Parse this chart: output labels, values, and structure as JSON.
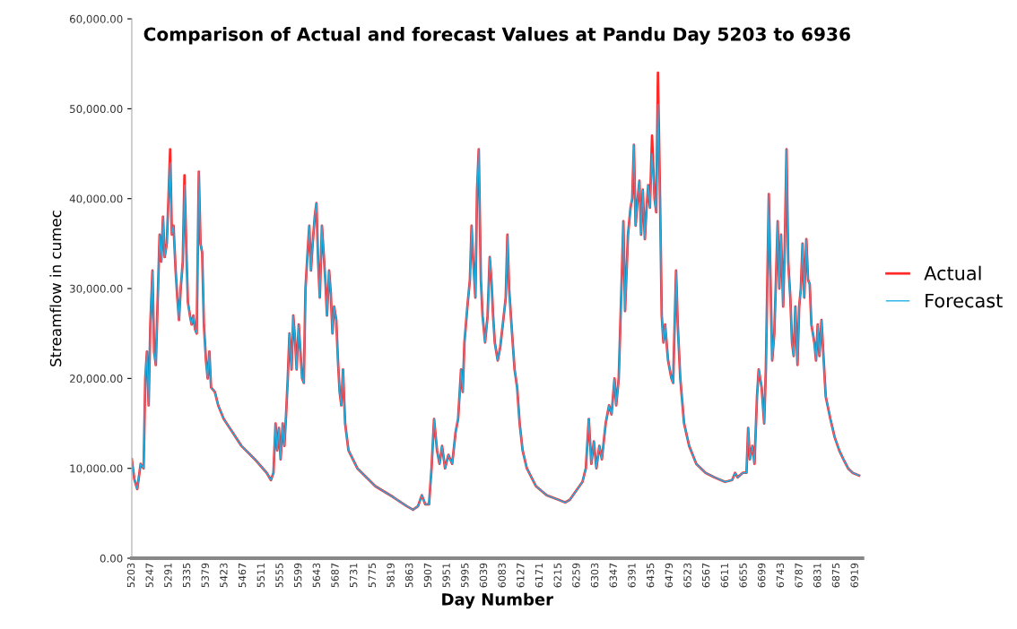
{
  "chart_data": {
    "type": "line",
    "title": "Comparison of Actual and forecast Values at Pandu Day 5203 to 6936",
    "xlabel": "Day Number",
    "ylabel": "Streamflow in cumec",
    "x": [
      5203,
      5209,
      5216,
      5224,
      5231,
      5235,
      5239,
      5243,
      5247,
      5252,
      5256,
      5260,
      5264,
      5269,
      5273,
      5277,
      5281,
      5286,
      5290,
      5294,
      5298,
      5302,
      5307,
      5311,
      5315,
      5319,
      5324,
      5328,
      5332,
      5336,
      5341,
      5345,
      5349,
      5353,
      5357,
      5362,
      5366,
      5370,
      5374,
      5379,
      5383,
      5387,
      5391,
      5400,
      5408,
      5421,
      5442,
      5463,
      5495,
      5523,
      5533,
      5539,
      5544,
      5548,
      5552,
      5556,
      5561,
      5565,
      5569,
      5573,
      5577,
      5582,
      5586,
      5590,
      5594,
      5599,
      5603,
      5607,
      5611,
      5615,
      5620,
      5624,
      5628,
      5632,
      5637,
      5641,
      5645,
      5649,
      5654,
      5658,
      5662,
      5666,
      5671,
      5675,
      5679,
      5683,
      5688,
      5692,
      5696,
      5700,
      5704,
      5709,
      5717,
      5738,
      5781,
      5823,
      5855,
      5870,
      5882,
      5891,
      5899,
      5908,
      5914,
      5920,
      5927,
      5933,
      5939,
      5946,
      5954,
      5963,
      5971,
      5977,
      5984,
      5988,
      5992,
      5999,
      6005,
      6009,
      6013,
      6018,
      6022,
      6026,
      6031,
      6035,
      6041,
      6047,
      6052,
      6056,
      6060,
      6064,
      6071,
      6077,
      6083,
      6090,
      6094,
      6098,
      6105,
      6111,
      6117,
      6123,
      6130,
      6140,
      6162,
      6187,
      6215,
      6231,
      6242,
      6257,
      6272,
      6280,
      6287,
      6293,
      6299,
      6305,
      6312,
      6318,
      6327,
      6335,
      6341,
      6348,
      6352,
      6358,
      6365,
      6369,
      6373,
      6380,
      6386,
      6390,
      6394,
      6398,
      6403,
      6407,
      6411,
      6415,
      6420,
      6424,
      6428,
      6432,
      6437,
      6443,
      6447,
      6451,
      6456,
      6460,
      6464,
      6468,
      6475,
      6483,
      6487,
      6494,
      6498,
      6504,
      6513,
      6525,
      6542,
      6564,
      6585,
      6610,
      6627,
      6634,
      6640,
      6652,
      6661,
      6665,
      6669,
      6675,
      6680,
      6686,
      6690,
      6697,
      6703,
      6707,
      6714,
      6718,
      6722,
      6727,
      6731,
      6735,
      6739,
      6743,
      6748,
      6752,
      6756,
      6760,
      6765,
      6769,
      6773,
      6777,
      6782,
      6786,
      6790,
      6794,
      6798,
      6803,
      6807,
      6811,
      6815,
      6822,
      6826,
      6830,
      6834,
      6839,
      6843,
      6849,
      6860,
      6870,
      6881,
      6891,
      6902,
      6913,
      6928
    ],
    "series": [
      {
        "name": "Actual",
        "color": "#ff2a2a",
        "values": [
          11000,
          8800,
          7700,
          10500,
          10000,
          20000,
          23000,
          17000,
          26000,
          32000,
          23000,
          21500,
          28000,
          36000,
          33000,
          38000,
          33500,
          35000,
          40000,
          45500,
          36000,
          37000,
          32000,
          29000,
          26500,
          30000,
          33000,
          42600,
          35000,
          28500,
          27000,
          26000,
          27000,
          25500,
          25000,
          43000,
          35000,
          34000,
          26000,
          22000,
          20000,
          23000,
          19000,
          18500,
          17000,
          15500,
          14000,
          12500,
          11000,
          9500,
          8700,
          9500,
          15000,
          12000,
          14500,
          11000,
          15000,
          12500,
          16000,
          20000,
          25000,
          21000,
          27000,
          24500,
          21000,
          26000,
          23000,
          20000,
          19500,
          30000,
          34000,
          37000,
          32000,
          35000,
          38000,
          39500,
          33000,
          29000,
          37000,
          34000,
          31000,
          27000,
          32000,
          29500,
          25000,
          28000,
          26500,
          22000,
          18500,
          17000,
          21000,
          15000,
          12000,
          10000,
          8000,
          6800,
          5800,
          5400,
          5800,
          7000,
          6000,
          6000,
          10000,
          15500,
          12000,
          10500,
          12500,
          10000,
          11500,
          10500,
          14000,
          15500,
          21000,
          18500,
          24000,
          28000,
          31000,
          37000,
          33000,
          29000,
          41000,
          45500,
          31000,
          27000,
          24000,
          27000,
          33500,
          31000,
          27000,
          24000,
          22000,
          23500,
          26000,
          29000,
          36000,
          30000,
          25000,
          21000,
          19000,
          15000,
          12000,
          10000,
          8000,
          7000,
          6500,
          6200,
          6500,
          7500,
          8500,
          10000,
          15500,
          10500,
          13000,
          10000,
          12500,
          11000,
          15000,
          17000,
          16000,
          20000,
          17000,
          20000,
          31000,
          37500,
          27500,
          36000,
          39000,
          40000,
          46000,
          37000,
          40000,
          42000,
          36000,
          41000,
          35500,
          39000,
          41500,
          39000,
          47000,
          40000,
          38500,
          54000,
          40000,
          27000,
          24000,
          26000,
          22000,
          20000,
          19500,
          32000,
          26000,
          20000,
          15000,
          12500,
          10500,
          9500,
          9000,
          8500,
          8700,
          9500,
          9000,
          9500,
          9500,
          14500,
          11000,
          12500,
          10500,
          18000,
          21000,
          19000,
          15000,
          21000,
          40500,
          31000,
          22000,
          25000,
          31000,
          37500,
          30000,
          36000,
          28000,
          35000,
          45500,
          33000,
          29000,
          24000,
          22500,
          28000,
          21500,
          28000,
          30000,
          35000,
          29000,
          35500,
          31000,
          30500,
          26000,
          24000,
          22000,
          26000,
          22500,
          26500,
          23000,
          18000,
          15500,
          13500,
          12000,
          11000,
          10000,
          9500,
          9200
        ]
      },
      {
        "name": "Forecast",
        "color": "#1fb0e6",
        "values": [
          11000,
          8800,
          7700,
          10500,
          10000,
          20000,
          23000,
          17000,
          26000,
          32000,
          23000,
          21500,
          28000,
          36000,
          33000,
          38000,
          33500,
          35000,
          40000,
          44000,
          36000,
          37000,
          32000,
          29000,
          26500,
          30000,
          33000,
          41500,
          35000,
          28500,
          27000,
          26000,
          27000,
          25500,
          25000,
          43000,
          35000,
          34000,
          26000,
          22000,
          20000,
          23000,
          19000,
          18500,
          17000,
          15500,
          14000,
          12500,
          11000,
          9500,
          8700,
          9500,
          15000,
          12000,
          14500,
          11000,
          15000,
          12500,
          16000,
          20000,
          25000,
          21000,
          27000,
          24500,
          21000,
          26000,
          23000,
          20000,
          19500,
          30000,
          34000,
          37000,
          32000,
          35000,
          38000,
          39500,
          33000,
          29000,
          37000,
          34000,
          31000,
          27000,
          32000,
          29500,
          25000,
          28000,
          26500,
          22000,
          18500,
          17000,
          21000,
          15000,
          12000,
          10000,
          8000,
          6800,
          5800,
          5400,
          5800,
          7000,
          6000,
          6000,
          10000,
          15500,
          12000,
          10500,
          12500,
          10000,
          11500,
          10500,
          14000,
          15500,
          21000,
          18500,
          24000,
          28000,
          31000,
          37000,
          33000,
          29000,
          41000,
          45500,
          31000,
          27000,
          24000,
          27000,
          33500,
          31000,
          27000,
          24000,
          22000,
          23500,
          26000,
          29000,
          36000,
          30000,
          25000,
          21000,
          19000,
          15000,
          12000,
          10000,
          8000,
          7000,
          6500,
          6200,
          6500,
          7500,
          8500,
          10000,
          15500,
          10500,
          13000,
          10000,
          12500,
          11000,
          15000,
          17000,
          16000,
          20000,
          17000,
          20000,
          31000,
          37500,
          27500,
          36000,
          39000,
          40000,
          46000,
          37000,
          40000,
          42000,
          36000,
          41000,
          35500,
          39000,
          41500,
          39000,
          45000,
          40000,
          38500,
          50500,
          40000,
          27000,
          24000,
          26000,
          22000,
          20000,
          19500,
          32000,
          26000,
          20000,
          15000,
          12500,
          10500,
          9500,
          9000,
          8500,
          8700,
          9500,
          9000,
          9500,
          9500,
          14500,
          11000,
          12500,
          10500,
          18000,
          21000,
          19000,
          15000,
          21000,
          40500,
          31000,
          22000,
          25000,
          31000,
          37500,
          30000,
          36000,
          28000,
          35000,
          45500,
          33000,
          29000,
          24000,
          22500,
          28000,
          21500,
          28000,
          30000,
          35000,
          29000,
          35500,
          31000,
          30500,
          26000,
          24000,
          22000,
          26000,
          22500,
          26500,
          23000,
          18000,
          15500,
          13500,
          12000,
          11000,
          10000,
          9500,
          9200
        ]
      }
    ],
    "xlim": [
      5203,
      6936
    ],
    "xticks": [
      5203,
      5247,
      5291,
      5335,
      5379,
      5423,
      5467,
      5511,
      5555,
      5599,
      5643,
      5687,
      5731,
      5775,
      5819,
      5863,
      5907,
      5951,
      5995,
      6039,
      6083,
      6127,
      6171,
      6215,
      6259,
      6303,
      6347,
      6391,
      6435,
      6479,
      6523,
      6567,
      6611,
      6655,
      6699,
      6743,
      6787,
      6831,
      6875,
      6919
    ],
    "ylim": [
      0,
      60000
    ],
    "yticks": [
      {
        "value": 0,
        "label": "0.00"
      },
      {
        "value": 10000,
        "label": "10,000.00"
      },
      {
        "value": 20000,
        "label": "20,000.00"
      },
      {
        "value": 30000,
        "label": "30,000.00"
      },
      {
        "value": 40000,
        "label": "40,000.00"
      },
      {
        "value": 50000,
        "label": "50,000.00"
      },
      {
        "value": 60000,
        "label": "60,000.00"
      }
    ],
    "grid": false,
    "legend": "right",
    "marker": "none",
    "line_style": "solid"
  }
}
